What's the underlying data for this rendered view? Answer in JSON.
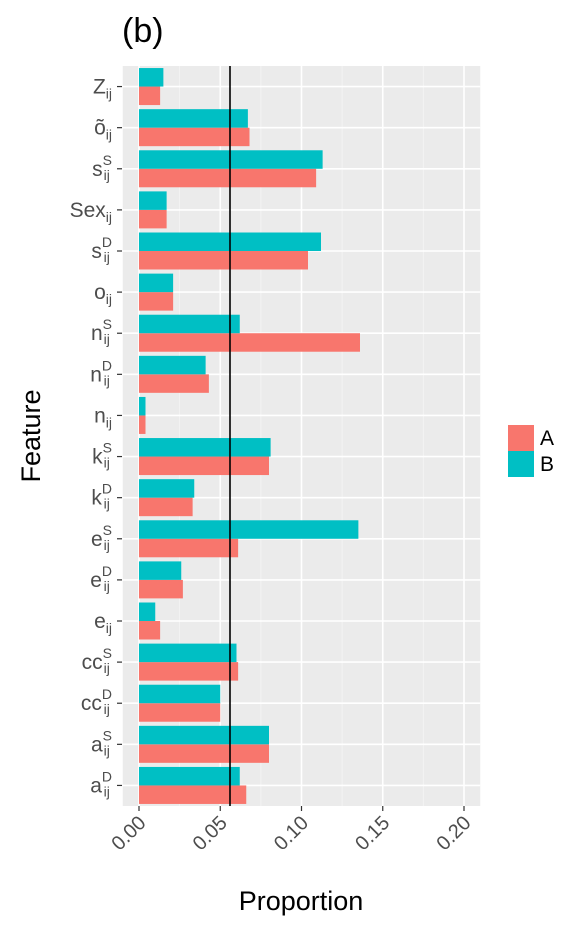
{
  "panel_label": "(b)",
  "chart_data": {
    "type": "bar",
    "orientation": "horizontal",
    "xlabel": "Proportion",
    "ylabel": "Feature",
    "xlim": [
      -0.01,
      0.21
    ],
    "x_ticks": [
      "0.00",
      "0.05",
      "0.10",
      "0.15",
      "0.20"
    ],
    "x_tick_values": [
      0,
      0.05,
      0.1,
      0.15,
      0.2
    ],
    "reference_line": 0.056,
    "grid": true,
    "legend_position": "right",
    "categories": [
      {
        "id": "a_D",
        "base": "a",
        "sub": "ij",
        "sup": "D"
      },
      {
        "id": "a_S",
        "base": "a",
        "sub": "ij",
        "sup": "S"
      },
      {
        "id": "cc_D",
        "base": "cc",
        "sub": "ij",
        "sup": "D"
      },
      {
        "id": "cc_S",
        "base": "cc",
        "sub": "ij",
        "sup": "S"
      },
      {
        "id": "e",
        "base": "e",
        "sub": "ij",
        "sup": ""
      },
      {
        "id": "e_D",
        "base": "e",
        "sub": "ij",
        "sup": "D"
      },
      {
        "id": "e_S",
        "base": "e",
        "sub": "ij",
        "sup": "S"
      },
      {
        "id": "k_D",
        "base": "k",
        "sub": "ij",
        "sup": "D"
      },
      {
        "id": "k_S",
        "base": "k",
        "sub": "ij",
        "sup": "S"
      },
      {
        "id": "n",
        "base": "n",
        "sub": "ij",
        "sup": ""
      },
      {
        "id": "n_D",
        "base": "n",
        "sub": "ij",
        "sup": "D"
      },
      {
        "id": "n_S",
        "base": "n",
        "sub": "ij",
        "sup": "S"
      },
      {
        "id": "o",
        "base": "o",
        "sub": "ij",
        "sup": ""
      },
      {
        "id": "s_D",
        "base": "s",
        "sub": "ij",
        "sup": "D"
      },
      {
        "id": "Sex",
        "base": "Sex",
        "sub": "ij",
        "sup": ""
      },
      {
        "id": "s_S",
        "base": "s",
        "sub": "ij",
        "sup": "S"
      },
      {
        "id": "o_tilde",
        "base": "õ",
        "sub": "ij",
        "sup": ""
      },
      {
        "id": "Z",
        "base": "Z",
        "sub": "ij",
        "sup": ""
      }
    ],
    "series": [
      {
        "name": "A",
        "color": "#F8766D",
        "values": [
          0.066,
          0.08,
          0.05,
          0.061,
          0.013,
          0.027,
          0.061,
          0.033,
          0.08,
          0.004,
          0.043,
          0.136,
          0.021,
          0.104,
          0.017,
          0.109,
          0.068,
          0.013
        ]
      },
      {
        "name": "B",
        "color": "#00BFC4",
        "values": [
          0.062,
          0.08,
          0.05,
          0.06,
          0.01,
          0.026,
          0.135,
          0.034,
          0.081,
          0.004,
          0.041,
          0.062,
          0.021,
          0.112,
          0.017,
          0.113,
          0.067,
          0.015
        ]
      }
    ]
  }
}
